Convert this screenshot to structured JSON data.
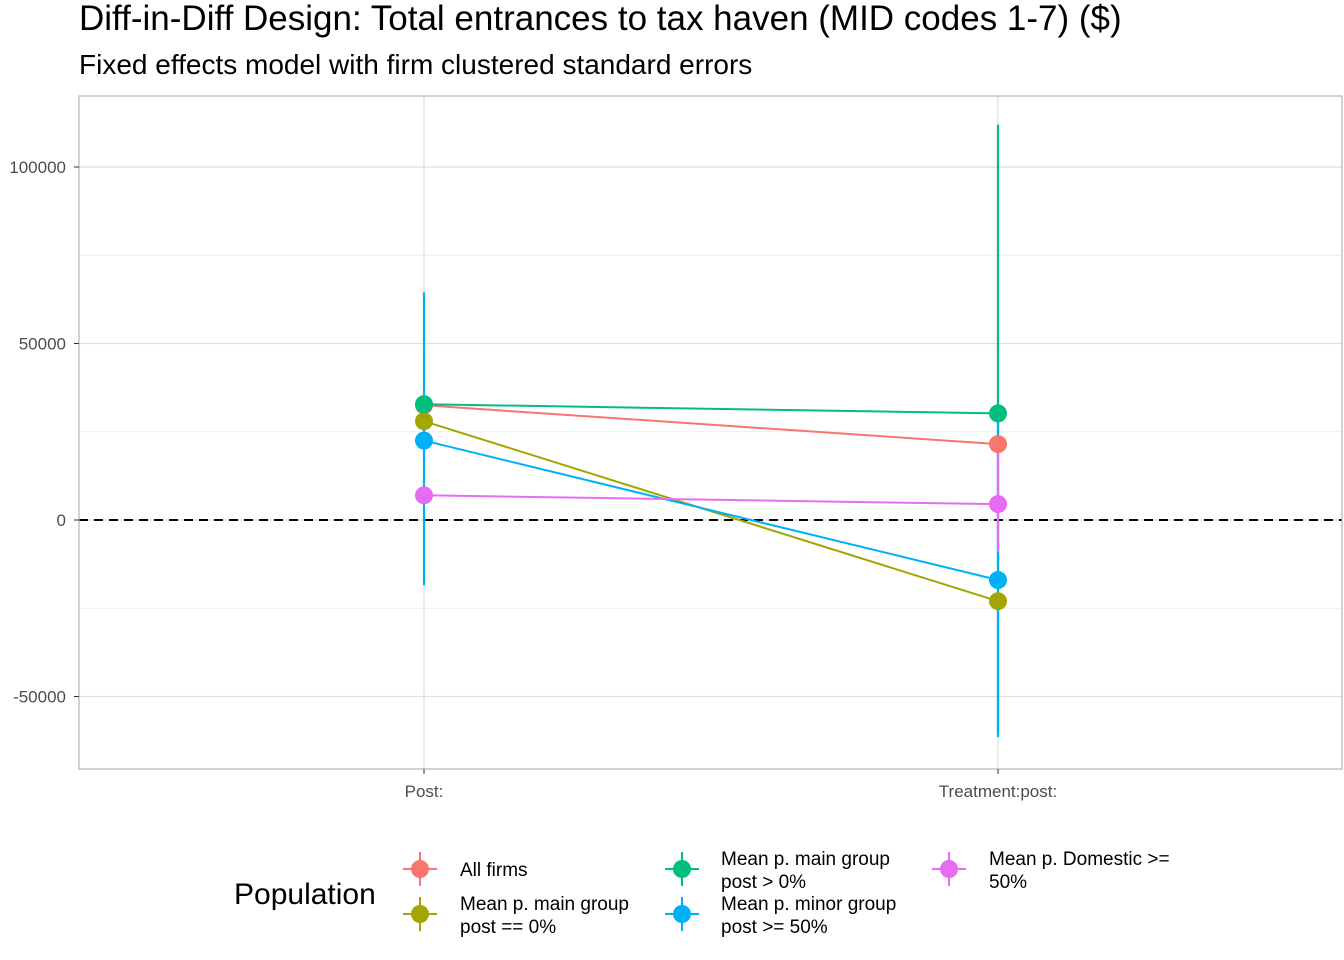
{
  "chart_data": {
    "type": "scatter",
    "title": "Diff-in-Diff Design: Total entrances to tax haven (MID codes 1-7)  ($)",
    "subtitle": "Fixed effects model with firm clustered standard errors",
    "xlabel": "",
    "ylabel": "",
    "categories": [
      "Post:",
      "Treatment:post:"
    ],
    "ylim": [
      -70000,
      120000
    ],
    "yticks": [
      -50000,
      0,
      50000,
      100000
    ],
    "ytick_labels": [
      "-50000",
      "0",
      "50000",
      "100000"
    ],
    "reference_line": 0,
    "grid": true,
    "legend": {
      "title": "Population",
      "position": "bottom"
    },
    "series": [
      {
        "name": "All firms",
        "label_lines": [
          "All firms"
        ],
        "color": "#F8766D",
        "values": [
          32500,
          21500
        ],
        "ci_low": [
          null,
          null
        ],
        "ci_high": [
          null,
          null
        ]
      },
      {
        "name": "Mean p. main group post == 0%",
        "label_lines": [
          "Mean p. main group",
          "post == 0%"
        ],
        "color": "#A3A500",
        "values": [
          28000,
          -23000
        ],
        "ci_low": [
          null,
          null
        ],
        "ci_high": [
          null,
          null
        ]
      },
      {
        "name": "Mean p. main group post > 0%",
        "label_lines": [
          "Mean p. main group",
          "post > 0%"
        ],
        "color": "#00BF7D",
        "values": [
          32800,
          30200
        ],
        "ci_low": [
          null,
          -60000
        ],
        "ci_high": [
          null,
          112000
        ]
      },
      {
        "name": "Mean p. minor group post >= 50%",
        "label_lines": [
          "Mean p. minor group",
          "post >= 50%"
        ],
        "color": "#00B0F6",
        "values": [
          22500,
          -17000
        ],
        "ci_low": [
          -18500,
          -61500
        ],
        "ci_high": [
          64500,
          28000
        ]
      },
      {
        "name": "Mean p. Domestic >= 50%",
        "label_lines": [
          "Mean p. Domestic >=",
          "50%"
        ],
        "color": "#E76BF3",
        "values": [
          7000,
          4500
        ],
        "ci_low": [
          null,
          -9000
        ],
        "ci_high": [
          null,
          21000
        ]
      }
    ]
  }
}
